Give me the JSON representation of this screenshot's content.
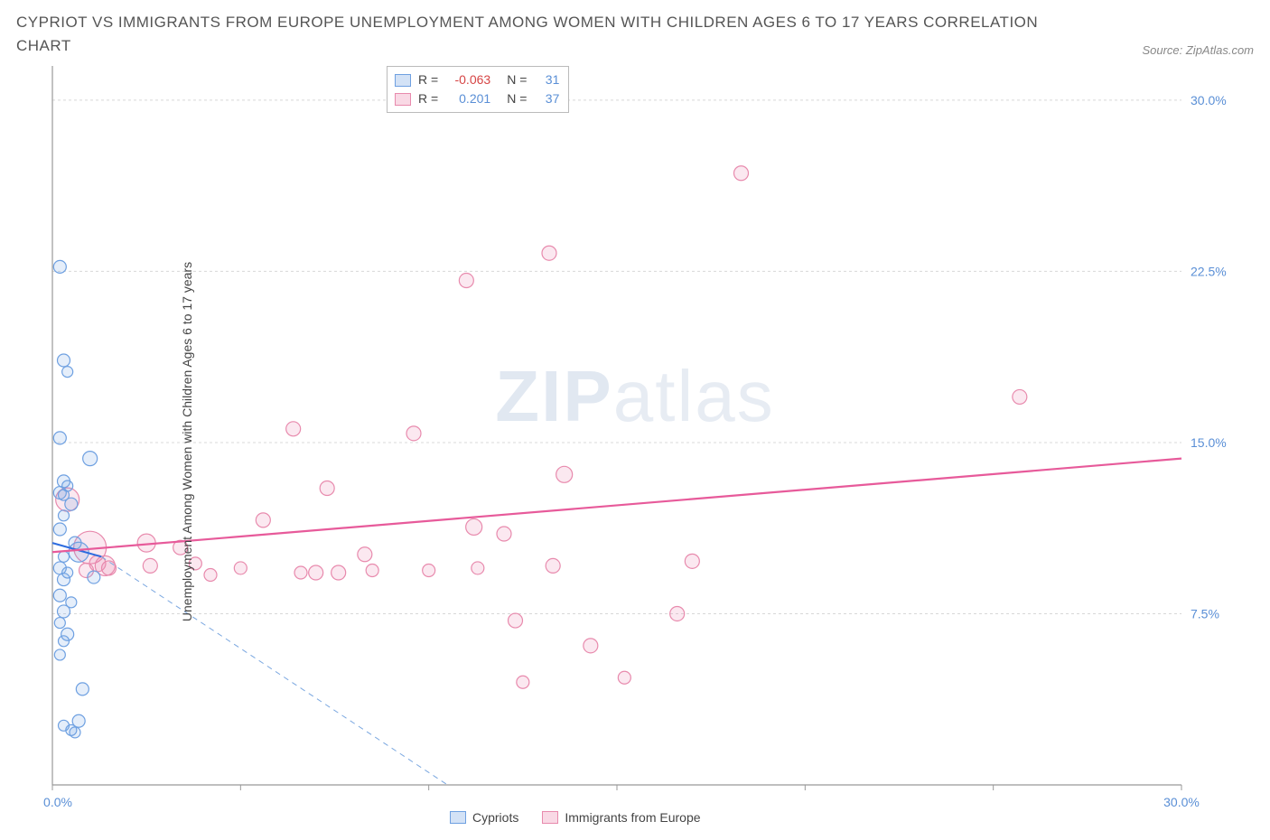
{
  "header": {
    "title": "CYPRIOT VS IMMIGRANTS FROM EUROPE UNEMPLOYMENT AMONG WOMEN WITH CHILDREN AGES 6 TO 17 YEARS CORRELATION CHART",
    "source": "Source: ZipAtlas.com"
  },
  "chart": {
    "type": "scatter",
    "ylabel": "Unemployment Among Women with Children Ages 6 to 17 years",
    "xlim": [
      0,
      30
    ],
    "ylim": [
      0,
      31.5
    ],
    "xticks": [
      0,
      5,
      10,
      15,
      20,
      25,
      30
    ],
    "xtick_labels_shown": {
      "0": "0.0%",
      "30": "30.0%"
    },
    "yticks": [
      7.5,
      15.0,
      22.5,
      30.0
    ],
    "ytick_labels": [
      "7.5%",
      "15.0%",
      "22.5%",
      "30.0%"
    ],
    "grid_color": "#d8d8d8",
    "background_color": "#ffffff",
    "axis_color": "#999999",
    "watermark": "ZIPatlas",
    "legend_top": {
      "rows": [
        {
          "swatch": "blue",
          "r_label": "R =",
          "r_value": "-0.063",
          "r_neg": true,
          "n_label": "N =",
          "n_value": "31"
        },
        {
          "swatch": "pink",
          "r_label": "R =",
          "r_value": "0.201",
          "r_neg": false,
          "n_label": "N =",
          "n_value": "37"
        }
      ]
    },
    "legend_bottom": [
      {
        "swatch": "blue",
        "label": "Cypriots"
      },
      {
        "swatch": "pink",
        "label": "Immigrants from Europe"
      }
    ],
    "series": {
      "blue": {
        "color_fill": "rgba(110,160,225,0.18)",
        "color_stroke": "#6ea0e1",
        "trend": {
          "x1": 0,
          "y1": 10.6,
          "x2": 1.3,
          "y2": 10.0,
          "dash_x2": 10.5,
          "dash_y2": 0
        },
        "points": [
          {
            "x": 0.2,
            "y": 22.7,
            "r": 7
          },
          {
            "x": 0.3,
            "y": 18.6,
            "r": 7
          },
          {
            "x": 0.4,
            "y": 18.1,
            "r": 6
          },
          {
            "x": 0.2,
            "y": 15.2,
            "r": 7
          },
          {
            "x": 1.0,
            "y": 14.3,
            "r": 8
          },
          {
            "x": 0.3,
            "y": 13.3,
            "r": 7
          },
          {
            "x": 0.4,
            "y": 13.1,
            "r": 6
          },
          {
            "x": 0.2,
            "y": 12.8,
            "r": 7
          },
          {
            "x": 0.3,
            "y": 12.7,
            "r": 6
          },
          {
            "x": 0.5,
            "y": 12.3,
            "r": 7
          },
          {
            "x": 0.3,
            "y": 11.8,
            "r": 6
          },
          {
            "x": 0.2,
            "y": 11.2,
            "r": 7
          },
          {
            "x": 0.6,
            "y": 10.6,
            "r": 7
          },
          {
            "x": 0.3,
            "y": 10.0,
            "r": 6
          },
          {
            "x": 0.7,
            "y": 10.2,
            "r": 11
          },
          {
            "x": 0.2,
            "y": 9.5,
            "r": 7
          },
          {
            "x": 0.4,
            "y": 9.3,
            "r": 6
          },
          {
            "x": 0.3,
            "y": 9.0,
            "r": 7
          },
          {
            "x": 1.1,
            "y": 9.1,
            "r": 7
          },
          {
            "x": 0.2,
            "y": 8.3,
            "r": 7
          },
          {
            "x": 0.5,
            "y": 8.0,
            "r": 6
          },
          {
            "x": 0.3,
            "y": 7.6,
            "r": 7
          },
          {
            "x": 0.2,
            "y": 7.1,
            "r": 6
          },
          {
            "x": 0.4,
            "y": 6.6,
            "r": 7
          },
          {
            "x": 0.3,
            "y": 6.3,
            "r": 6
          },
          {
            "x": 0.2,
            "y": 5.7,
            "r": 6
          },
          {
            "x": 0.8,
            "y": 4.2,
            "r": 7
          },
          {
            "x": 0.7,
            "y": 2.8,
            "r": 7
          },
          {
            "x": 0.3,
            "y": 2.6,
            "r": 6
          },
          {
            "x": 0.5,
            "y": 2.4,
            "r": 6
          },
          {
            "x": 0.6,
            "y": 2.3,
            "r": 6
          }
        ]
      },
      "pink": {
        "color_fill": "rgba(235,130,170,0.18)",
        "color_stroke": "#e88aad",
        "trend": {
          "x1": 0,
          "y1": 10.2,
          "x2": 30,
          "y2": 14.3
        },
        "points": [
          {
            "x": 0.4,
            "y": 12.5,
            "r": 13
          },
          {
            "x": 1.0,
            "y": 10.4,
            "r": 18
          },
          {
            "x": 1.4,
            "y": 9.6,
            "r": 11
          },
          {
            "x": 1.5,
            "y": 9.5,
            "r": 8
          },
          {
            "x": 2.5,
            "y": 10.6,
            "r": 10
          },
          {
            "x": 2.6,
            "y": 9.6,
            "r": 8
          },
          {
            "x": 3.4,
            "y": 10.4,
            "r": 8
          },
          {
            "x": 3.8,
            "y": 9.7,
            "r": 7
          },
          {
            "x": 5.6,
            "y": 11.6,
            "r": 8
          },
          {
            "x": 6.4,
            "y": 15.6,
            "r": 8
          },
          {
            "x": 6.6,
            "y": 9.3,
            "r": 7
          },
          {
            "x": 7.0,
            "y": 9.3,
            "r": 8
          },
          {
            "x": 7.3,
            "y": 13.0,
            "r": 8
          },
          {
            "x": 7.6,
            "y": 9.3,
            "r": 8
          },
          {
            "x": 8.3,
            "y": 10.1,
            "r": 8
          },
          {
            "x": 8.5,
            "y": 9.4,
            "r": 7
          },
          {
            "x": 9.6,
            "y": 15.4,
            "r": 8
          },
          {
            "x": 10.0,
            "y": 9.4,
            "r": 7
          },
          {
            "x": 11.0,
            "y": 22.1,
            "r": 8
          },
          {
            "x": 11.2,
            "y": 11.3,
            "r": 9
          },
          {
            "x": 11.3,
            "y": 9.5,
            "r": 7
          },
          {
            "x": 12.0,
            "y": 11.0,
            "r": 8
          },
          {
            "x": 12.3,
            "y": 7.2,
            "r": 8
          },
          {
            "x": 12.5,
            "y": 4.5,
            "r": 7
          },
          {
            "x": 13.2,
            "y": 23.3,
            "r": 8
          },
          {
            "x": 13.3,
            "y": 9.6,
            "r": 8
          },
          {
            "x": 13.6,
            "y": 13.6,
            "r": 9
          },
          {
            "x": 14.3,
            "y": 6.1,
            "r": 8
          },
          {
            "x": 15.2,
            "y": 4.7,
            "r": 7
          },
          {
            "x": 16.6,
            "y": 7.5,
            "r": 8
          },
          {
            "x": 17.0,
            "y": 9.8,
            "r": 8
          },
          {
            "x": 18.3,
            "y": 26.8,
            "r": 8
          },
          {
            "x": 25.7,
            "y": 17.0,
            "r": 8
          },
          {
            "x": 1.2,
            "y": 9.7,
            "r": 9
          },
          {
            "x": 4.2,
            "y": 9.2,
            "r": 7
          },
          {
            "x": 5.0,
            "y": 9.5,
            "r": 7
          },
          {
            "x": 0.9,
            "y": 9.4,
            "r": 8
          }
        ]
      }
    }
  }
}
